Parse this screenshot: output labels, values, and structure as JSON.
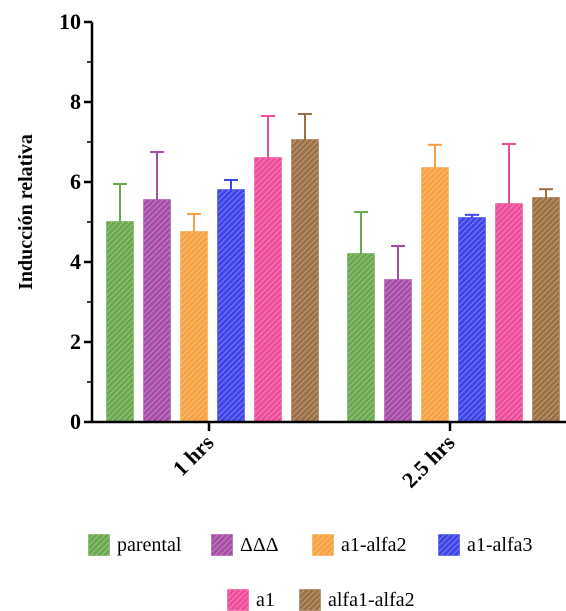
{
  "chart_data": {
    "type": "bar",
    "title": "",
    "xlabel": "",
    "ylabel": "Inducción relativa",
    "ylim": [
      0,
      10
    ],
    "yticks": [
      0,
      2,
      4,
      6,
      8,
      10
    ],
    "categories": [
      "1 hrs",
      "2.5 hrs"
    ],
    "legend_position": "bottom",
    "series": [
      {
        "name": "parental",
        "color": "#6aa84f",
        "values": [
          5.0,
          4.2
        ],
        "errors": [
          0.95,
          1.05
        ]
      },
      {
        "name": "ΔΔΔ",
        "color": "#a64ca6",
        "values": [
          5.55,
          3.55
        ],
        "errors": [
          1.2,
          0.85
        ]
      },
      {
        "name": "a1-alfa2",
        "color": "#f6a240",
        "values": [
          4.75,
          6.35
        ],
        "errors": [
          0.45,
          0.58
        ]
      },
      {
        "name": "a1-alfa3",
        "color": "#3d44e8",
        "values": [
          5.8,
          5.1
        ],
        "errors": [
          0.25,
          0.08
        ]
      },
      {
        "name": "a1",
        "color": "#ee4c9a",
        "values": [
          6.6,
          5.45
        ],
        "errors": [
          1.05,
          1.5
        ]
      },
      {
        "name": "alfa1-alfa2",
        "color": "#9c7043",
        "values": [
          7.05,
          5.6
        ],
        "errors": [
          0.65,
          0.22
        ]
      }
    ]
  }
}
